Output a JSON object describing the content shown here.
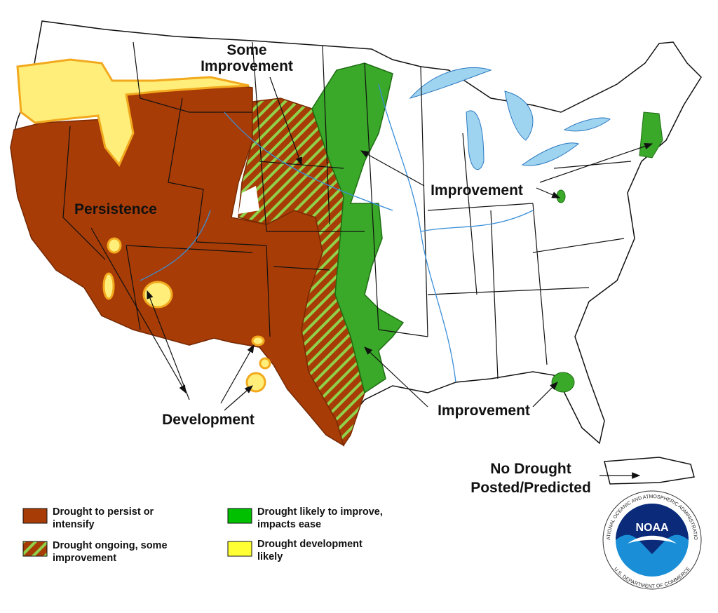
{
  "map": {
    "labels": {
      "some_improvement": [
        "Some",
        "Improvement"
      ],
      "persistence": "Persistence",
      "improvement_north": "Improvement",
      "improvement_south": "Improvement",
      "development": "Development",
      "no_drought": [
        "No Drought",
        "Posted/Predicted"
      ]
    }
  },
  "legend": [
    {
      "lines": [
        "Drought to persist or",
        "intensify"
      ]
    },
    {
      "lines": [
        "Drought ongoing, some",
        "improvement"
      ]
    },
    {
      "lines": [
        "Drought likely to improve,",
        "impacts ease"
      ]
    },
    {
      "lines": [
        "Drought development",
        "likely"
      ]
    }
  ],
  "logo": {
    "name": "NOAA",
    "ring_top": "NATIONAL OCEANIC AND ATMOSPHERIC ADMINISTRATION",
    "ring_bottom": "U.S. DEPARTMENT OF COMMERCE"
  }
}
